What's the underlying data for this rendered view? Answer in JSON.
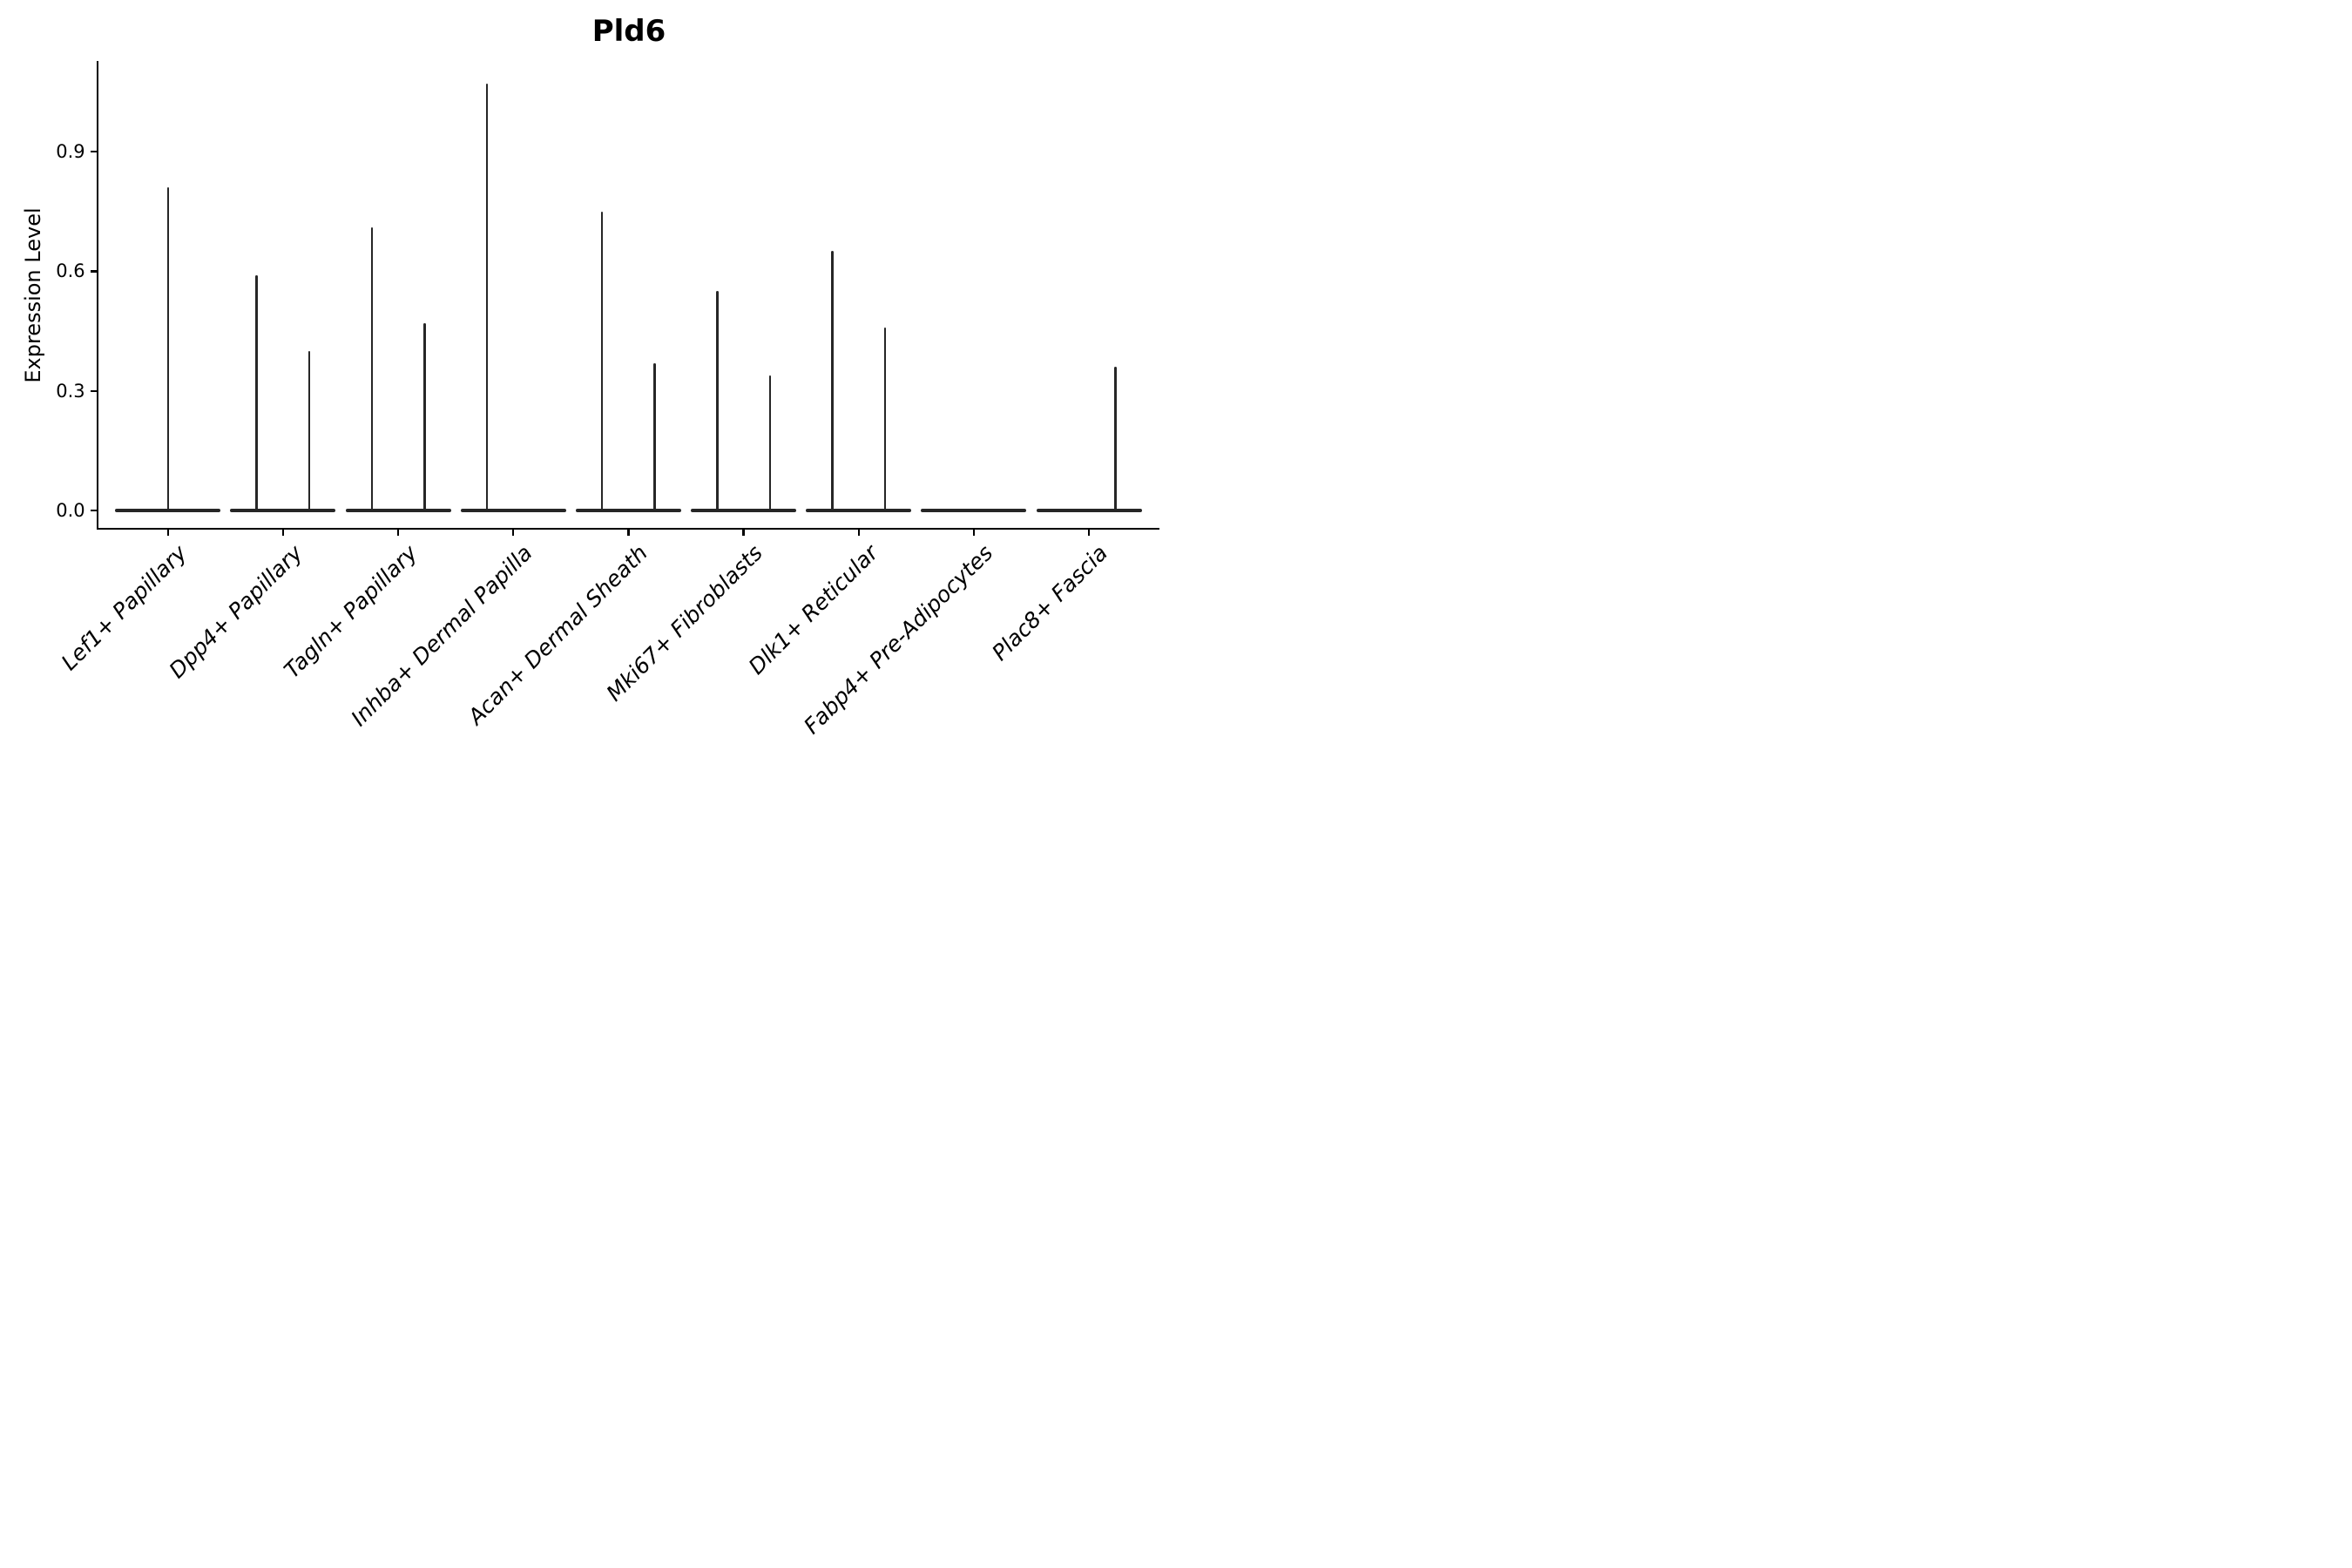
{
  "title": "Pld6",
  "chart_data": {
    "type": "violin",
    "title": "Pld6",
    "ylabel": "Expression Level",
    "xlabel": "",
    "yticks": [
      "0.0",
      "0.3",
      "0.6",
      "0.9"
    ],
    "ytick_values": [
      0.0,
      0.3,
      0.6,
      0.9
    ],
    "ylim": [
      -0.05,
      1.13
    ],
    "grid": false,
    "legend": "none",
    "x_label_style": "italic, rotated 45deg, right-anchored",
    "description": "Violin plot of Pld6 expression; most cells at 0 giving flat baselines with thin density spikes up to the max expression value; most categories contain two side-by-side violins",
    "categories": [
      {
        "label": "Lef1+ Papillary",
        "violins": [
          {
            "slot": "full",
            "max": 0.81
          }
        ]
      },
      {
        "label": "Dpp4+ Papillary",
        "violins": [
          {
            "slot": "left",
            "max": 0.59
          },
          {
            "slot": "right",
            "max": 0.4
          }
        ]
      },
      {
        "label": "Tagln+ Papillary",
        "violins": [
          {
            "slot": "left",
            "max": 0.71
          },
          {
            "slot": "right",
            "max": 0.47
          }
        ]
      },
      {
        "label": "Inhba+ Dermal Papilla",
        "violins": [
          {
            "slot": "left",
            "max": 1.07
          },
          {
            "slot": "right",
            "max": 0.0
          }
        ]
      },
      {
        "label": "Acan+ Dermal Sheath",
        "violins": [
          {
            "slot": "left",
            "max": 0.75
          },
          {
            "slot": "right",
            "max": 0.37
          }
        ]
      },
      {
        "label": "Mki67+ Fibroblasts",
        "violins": [
          {
            "slot": "left",
            "max": 0.55
          },
          {
            "slot": "right",
            "max": 0.34
          }
        ]
      },
      {
        "label": "Dlk1+ Reticular",
        "violins": [
          {
            "slot": "left",
            "max": 0.65
          },
          {
            "slot": "right",
            "max": 0.46
          }
        ]
      },
      {
        "label": "Fabp4+ Pre-Adipocytes",
        "violins": [
          {
            "slot": "left",
            "max": 0.0
          },
          {
            "slot": "right",
            "max": 0.0
          }
        ]
      },
      {
        "label": "Plac8+ Fascia",
        "violins": [
          {
            "slot": "left",
            "max": 0.0
          },
          {
            "slot": "right",
            "max": 0.36
          }
        ]
      }
    ],
    "colors": {
      "violin": "#262626",
      "axis": "#000000",
      "text": "#000000",
      "background": "#ffffff"
    }
  }
}
